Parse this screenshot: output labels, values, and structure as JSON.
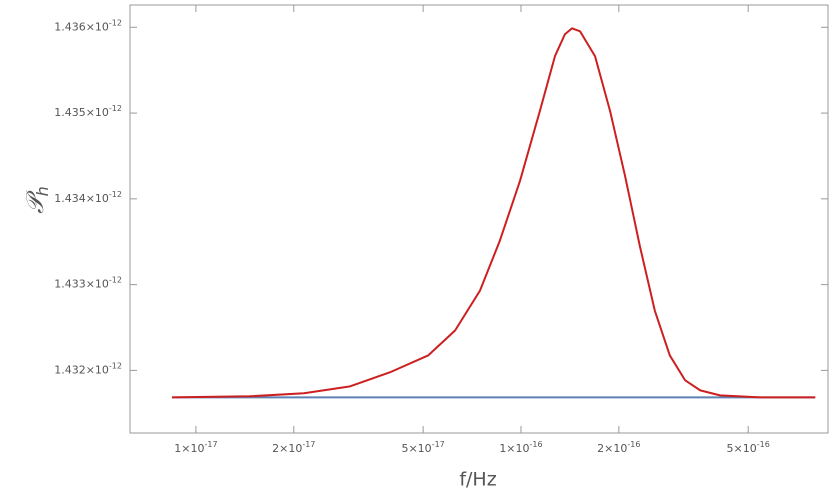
{
  "chart_data": {
    "type": "line",
    "x_label": "f/Hz",
    "y_label": "𝒫h",
    "log_x": true,
    "xlim": [
      6.27e-18,
      8.8e-16
    ],
    "ylim": [
      1.43127e-12,
      1.43626e-12
    ],
    "xticks": [
      {
        "value": 1e-17,
        "label": "1×10-17"
      },
      {
        "value": 2e-17,
        "label": "2×10-17"
      },
      {
        "value": 5e-17,
        "label": "5×10-17"
      },
      {
        "value": 1e-16,
        "label": "1×10-16"
      },
      {
        "value": 2e-16,
        "label": "2×10-16"
      },
      {
        "value": 5e-16,
        "label": "5×10-16"
      }
    ],
    "yticks": [
      {
        "value": 1.432e-12,
        "label": "1.432×10-12"
      },
      {
        "value": 1.433e-12,
        "label": "1.433×10-12"
      },
      {
        "value": 1.434e-12,
        "label": "1.434×10-12"
      },
      {
        "value": 1.435e-12,
        "label": "1.435×10-12"
      },
      {
        "value": 1.436e-12,
        "label": "1.436×10-12"
      }
    ],
    "series": [
      {
        "color": "#cc2020",
        "x": [
          8.44e-18,
          1.466e-17,
          2.15e-17,
          2.98e-17,
          3.95e-17,
          5.18e-17,
          6.27e-17,
          7.48e-17,
          8.61e-17,
          9.93e-17,
          1.143e-16,
          1.272e-16,
          1.365e-16,
          1.435e-16,
          1.52e-16,
          1.69e-16,
          1.88e-16,
          2.09e-16,
          2.32e-16,
          2.58e-16,
          2.87e-16,
          3.2e-16,
          3.56e-16,
          4.1e-16,
          5.43e-16,
          8.04e-16
        ],
        "values": [
          1.431686e-12,
          1.431698e-12,
          1.431733e-12,
          1.431814e-12,
          1.431977e-12,
          1.432174e-12,
          1.432465e-12,
          1.43293e-12,
          1.433512e-12,
          1.434209e-12,
          1.435023e-12,
          1.435663e-12,
          1.435919e-12,
          1.435988e-12,
          1.435953e-12,
          1.435663e-12,
          1.435023e-12,
          1.434267e-12,
          1.433453e-12,
          1.432698e-12,
          1.432174e-12,
          1.431884e-12,
          1.431767e-12,
          1.431709e-12,
          1.431686e-12,
          1.431686e-12
        ]
      },
      {
        "color": "#5e81b5",
        "x": [
          8.44e-18,
          8.04e-16
        ],
        "values": [
          1.431686e-12,
          1.431686e-12
        ]
      }
    ]
  }
}
